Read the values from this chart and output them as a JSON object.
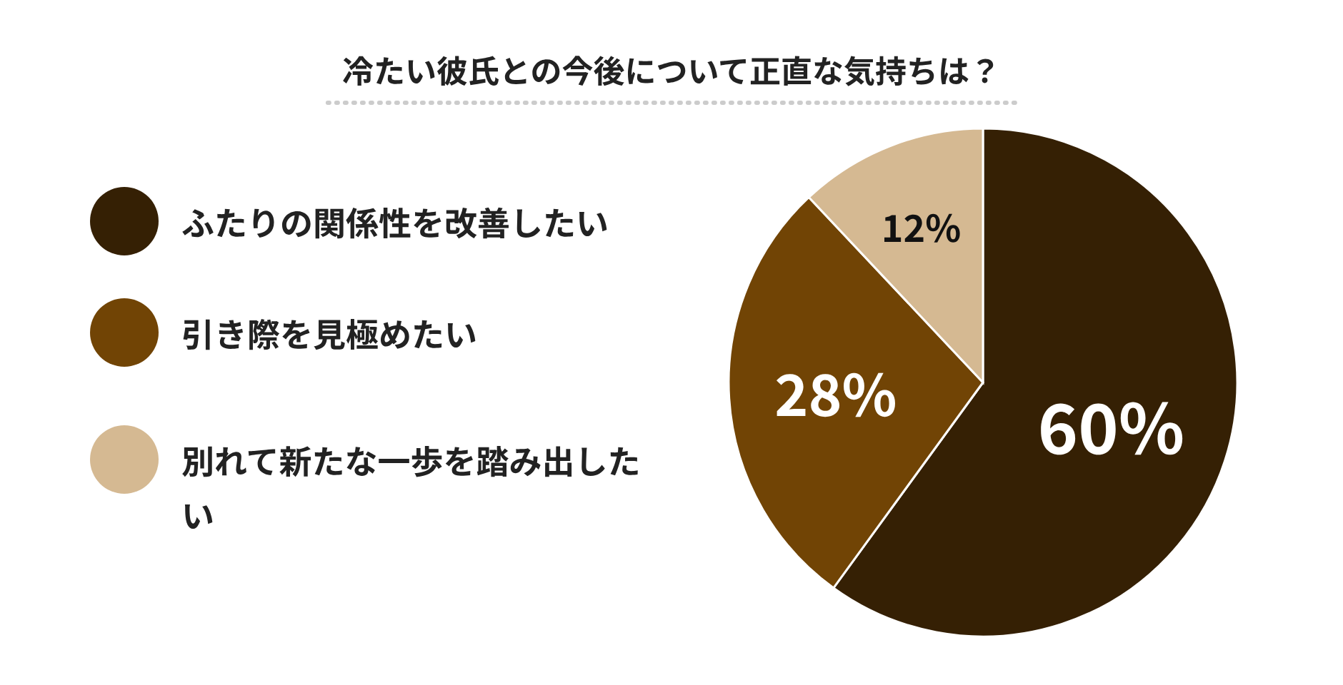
{
  "chart_data": {
    "type": "pie",
    "title": "冷たい彼氏との今後について正直な気持ちは？",
    "categories": [
      "ふたりの関係性を改善したい",
      "引き際を見極めたい",
      "別れて新たな一歩を踏み出したい"
    ],
    "values": [
      60,
      28,
      12
    ],
    "colors": [
      "#352004",
      "#714405",
      "#d5b992"
    ],
    "value_labels": [
      "60%",
      "28%",
      "12%"
    ],
    "legend": "left"
  }
}
